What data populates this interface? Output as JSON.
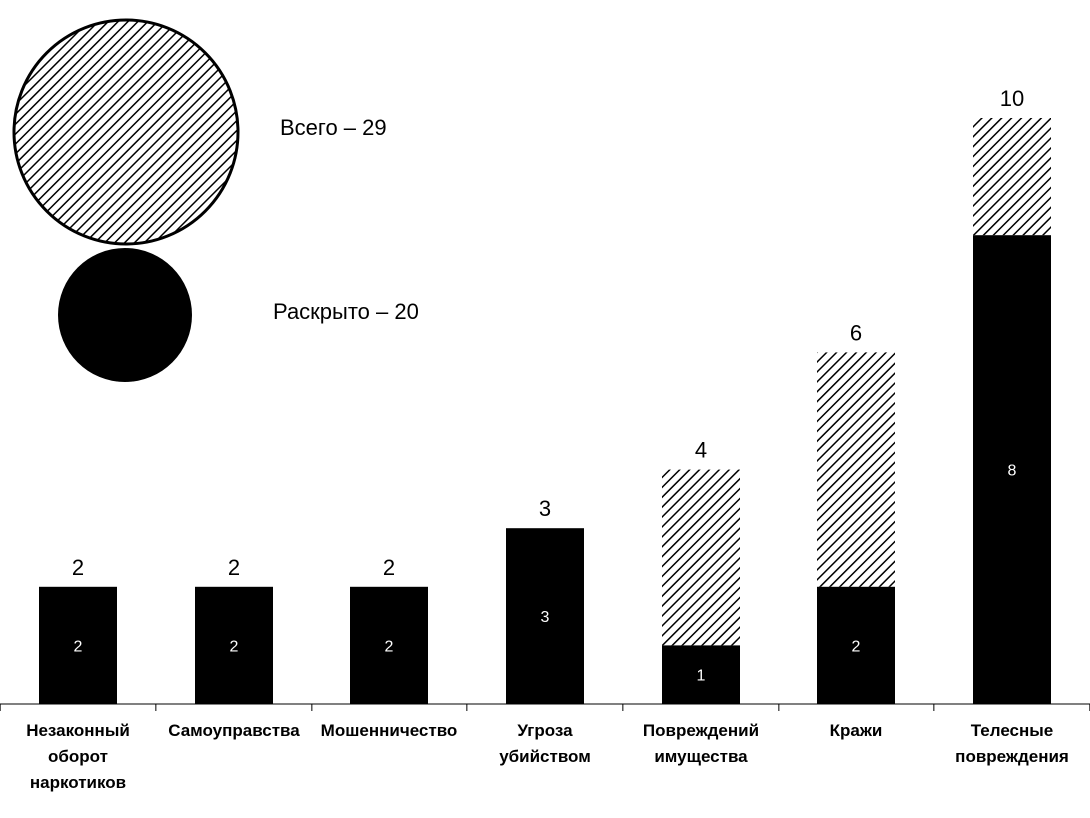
{
  "colors": {
    "solved": "#000000",
    "unsolved_hatch": "#000000",
    "background": "#ffffff"
  },
  "legend": {
    "total_label": "Всего – 29",
    "solved_label": "Раскрыто – 20"
  },
  "chart_data": {
    "type": "bar",
    "stacked": true,
    "categories": [
      "Незаконный\nоборот\nнаркотиков",
      "Самоуправства",
      "Мошенничество",
      "Угроза\nубийством",
      "Повреждений\nимущества",
      "Кражи",
      "Телесные\nповреждения"
    ],
    "totals": [
      2,
      2,
      2,
      3,
      4,
      6,
      10
    ],
    "solved": [
      2,
      2,
      2,
      3,
      1,
      2,
      8
    ],
    "ylim": [
      0,
      10
    ],
    "grid": false,
    "legend_position": "top-left",
    "title": "",
    "xlabel": "",
    "ylabel": ""
  }
}
